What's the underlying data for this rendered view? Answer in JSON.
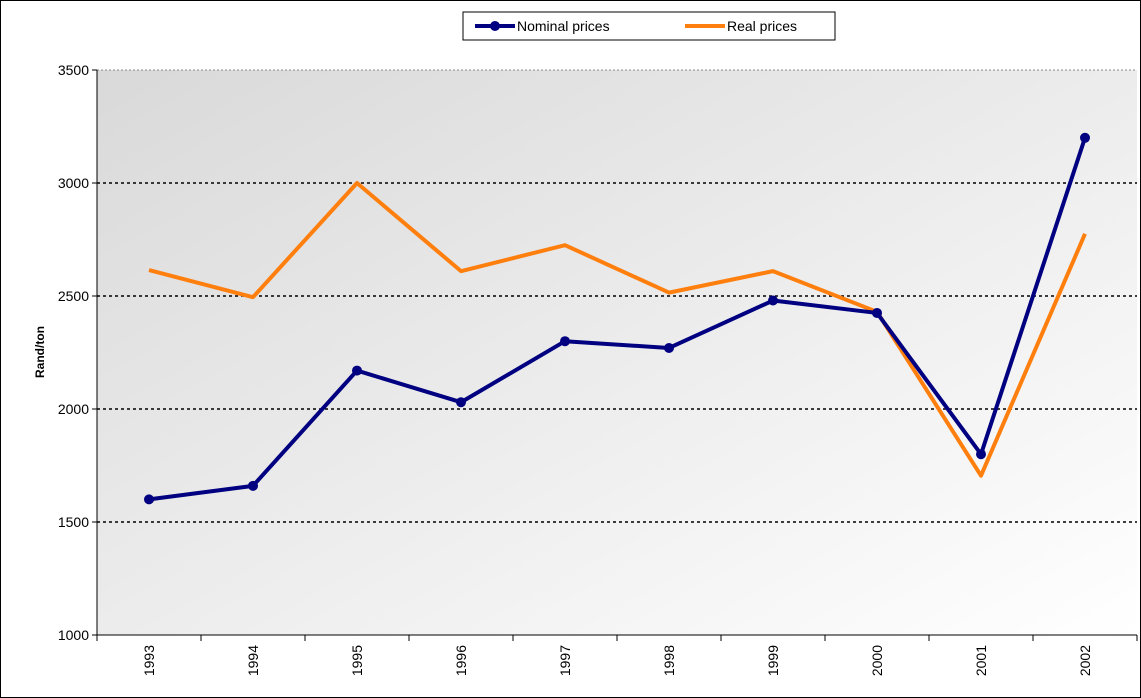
{
  "chart_data": {
    "type": "line",
    "y_label": "Rand/ton",
    "categories": [
      "1993",
      "1994",
      "1995",
      "1996",
      "1997",
      "1998",
      "1999",
      "2000",
      "2001",
      "2002"
    ],
    "series": [
      {
        "name": "Nominal prices",
        "color": "#000080",
        "marker": "circle",
        "values": [
          1600,
          1660,
          2170,
          2030,
          2300,
          2270,
          2480,
          2425,
          1800,
          3200
        ]
      },
      {
        "name": "Real prices",
        "color": "#ff7f0e",
        "marker": "none",
        "values": [
          2615,
          2495,
          3000,
          2610,
          2725,
          2515,
          2610,
          2430,
          1705,
          2775
        ]
      }
    ],
    "ylim": [
      1000,
      3500
    ],
    "yticks": [
      1000,
      1500,
      2000,
      2500,
      3000,
      3500
    ],
    "grid": true,
    "legend": "top"
  }
}
